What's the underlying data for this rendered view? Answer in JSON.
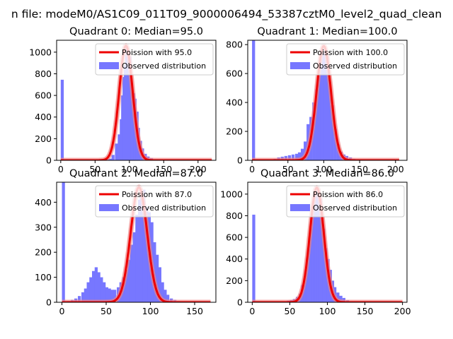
{
  "figure": {
    "suptitle": "n file: modeM0/AS1C09_011T09_9000006494_53387cztM0_level2_quad_clean"
  },
  "colors": {
    "hist": "#7777ff",
    "fit": "#ee0000",
    "fit_glow": "#f08080"
  },
  "chart_data": [
    {
      "type": "bar+line",
      "title": "Quadrant 0: Median=95.0",
      "xlim": [
        -6,
        226
      ],
      "ylim": [
        0,
        1110
      ],
      "xticks": [
        0,
        50,
        100,
        150,
        200
      ],
      "yticks": [
        0,
        200,
        400,
        600,
        800,
        1000
      ],
      "legend": {
        "position": "top-right",
        "fit_label": "Poission with 95.0",
        "hist_label": "Observed distribution"
      },
      "hist": {
        "bin_width": 4.4,
        "bins": [
          [
            0,
            745
          ],
          [
            62,
            5
          ],
          [
            66,
            10
          ],
          [
            70,
            15
          ],
          [
            74,
            50
          ],
          [
            79,
            155
          ],
          [
            83,
            240
          ],
          [
            86,
            380
          ],
          [
            88,
            600
          ],
          [
            90,
            770
          ],
          [
            92,
            880
          ],
          [
            94,
            1040
          ],
          [
            96,
            950
          ],
          [
            99,
            960
          ],
          [
            102,
            640
          ],
          [
            104,
            620
          ],
          [
            106,
            570
          ],
          [
            109,
            450
          ],
          [
            111,
            300
          ],
          [
            114,
            180
          ],
          [
            117,
            110
          ],
          [
            121,
            60
          ],
          [
            125,
            35
          ],
          [
            130,
            20
          ],
          [
            135,
            10
          ],
          [
            140,
            5
          ]
        ]
      },
      "fit": {
        "mean": 95.0,
        "peak": 1060,
        "x_range": [
          0,
          220
        ]
      }
    },
    {
      "type": "bar+line",
      "title": "Quadrant 1: Median=100.0",
      "xlim": [
        -6,
        216
      ],
      "ylim": [
        0,
        830
      ],
      "xticks": [
        0,
        50,
        100,
        150,
        200
      ],
      "yticks": [
        0,
        200,
        400,
        600,
        800
      ],
      "legend": {
        "position": "top-right",
        "fit_label": "Poission with 100.0",
        "hist_label": "Observed distribution"
      },
      "hist": {
        "bin_width": 4.2,
        "bins": [
          [
            0,
            830
          ],
          [
            30,
            10
          ],
          [
            35,
            20
          ],
          [
            40,
            25
          ],
          [
            45,
            30
          ],
          [
            50,
            35
          ],
          [
            55,
            40
          ],
          [
            60,
            45
          ],
          [
            64,
            55
          ],
          [
            68,
            80
          ],
          [
            72,
            130
          ],
          [
            76,
            250
          ],
          [
            80,
            300
          ],
          [
            84,
            400
          ],
          [
            88,
            490
          ],
          [
            92,
            630
          ],
          [
            95,
            700
          ],
          [
            97,
            780
          ],
          [
            100,
            760
          ],
          [
            103,
            720
          ],
          [
            106,
            540
          ],
          [
            110,
            380
          ],
          [
            114,
            220
          ],
          [
            118,
            110
          ],
          [
            122,
            60
          ],
          [
            126,
            40
          ],
          [
            130,
            30
          ],
          [
            135,
            20
          ],
          [
            140,
            10
          ],
          [
            145,
            5
          ]
        ]
      },
      "fit": {
        "mean": 100.0,
        "peak": 790,
        "x_range": [
          0,
          205
        ]
      }
    },
    {
      "type": "bar+line",
      "title": "Quadrant 2: Median=87.0",
      "xlim": [
        -6,
        174
      ],
      "ylim": [
        0,
        480
      ],
      "xticks": [
        0,
        50,
        100,
        150
      ],
      "yticks": [
        0,
        100,
        200,
        300,
        400
      ],
      "legend": {
        "position": "top-right",
        "fit_label": "Poission with 87.0",
        "hist_label": "Observed distribution"
      },
      "hist": {
        "bin_width": 3.4,
        "bins": [
          [
            0,
            480
          ],
          [
            6,
            5
          ],
          [
            10,
            10
          ],
          [
            14,
            15
          ],
          [
            18,
            25
          ],
          [
            22,
            40
          ],
          [
            25,
            55
          ],
          [
            28,
            80
          ],
          [
            31,
            100
          ],
          [
            34,
            125
          ],
          [
            37,
            140
          ],
          [
            40,
            120
          ],
          [
            43,
            100
          ],
          [
            46,
            80
          ],
          [
            49,
            60
          ],
          [
            52,
            55
          ],
          [
            55,
            50
          ],
          [
            58,
            50
          ],
          [
            62,
            60
          ],
          [
            65,
            80
          ],
          [
            68,
            100
          ],
          [
            71,
            130
          ],
          [
            74,
            170
          ],
          [
            77,
            230
          ],
          [
            80,
            280
          ],
          [
            83,
            350
          ],
          [
            86,
            410
          ],
          [
            88,
            430
          ],
          [
            91,
            450
          ],
          [
            94,
            380
          ],
          [
            97,
            360
          ],
          [
            100,
            320
          ],
          [
            103,
            240
          ],
          [
            106,
            190
          ],
          [
            109,
            140
          ],
          [
            112,
            80
          ],
          [
            115,
            50
          ],
          [
            118,
            30
          ],
          [
            122,
            15
          ],
          [
            126,
            10
          ],
          [
            130,
            5
          ]
        ]
      },
      "fit": {
        "mean": 87.0,
        "peak": 460,
        "x_range": [
          0,
          168
        ]
      }
    },
    {
      "type": "bar+line",
      "title": "Quadrant 3: Median=86.0",
      "xlim": [
        -6,
        206
      ],
      "ylim": [
        0,
        1110
      ],
      "xticks": [
        0,
        50,
        100,
        150,
        200
      ],
      "yticks": [
        0,
        200,
        400,
        600,
        800,
        1000
      ],
      "legend": {
        "position": "top-right",
        "fit_label": "Poission with 86.0",
        "hist_label": "Observed distribution"
      },
      "hist": {
        "bin_width": 4.0,
        "bins": [
          [
            0,
            810
          ],
          [
            38,
            5
          ],
          [
            42,
            10
          ],
          [
            46,
            15
          ],
          [
            50,
            20
          ],
          [
            54,
            30
          ],
          [
            58,
            50
          ],
          [
            62,
            80
          ],
          [
            65,
            160
          ],
          [
            68,
            220
          ],
          [
            71,
            300
          ],
          [
            73,
            430
          ],
          [
            75,
            580
          ],
          [
            77,
            700
          ],
          [
            79,
            880
          ],
          [
            81,
            1000
          ],
          [
            83,
            1040
          ],
          [
            86,
            1000
          ],
          [
            89,
            960
          ],
          [
            91,
            800
          ],
          [
            93,
            680
          ],
          [
            96,
            500
          ],
          [
            99,
            400
          ],
          [
            102,
            300
          ],
          [
            105,
            200
          ],
          [
            108,
            140
          ],
          [
            112,
            90
          ],
          [
            116,
            60
          ],
          [
            120,
            40
          ],
          [
            125,
            20
          ],
          [
            130,
            10
          ]
        ]
      },
      "fit": {
        "mean": 86.0,
        "peak": 1060,
        "x_range": [
          0,
          200
        ]
      }
    }
  ]
}
